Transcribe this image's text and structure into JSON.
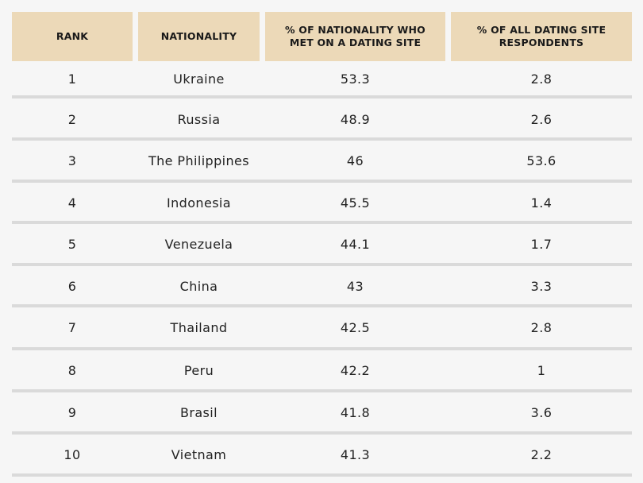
{
  "table": {
    "headers": [
      "RANK",
      "NATIONALITY",
      "% OF NATIONALITY WHO MET ON A DATING SITE",
      "% OF ALL DATING SITE RESPONDENTS"
    ],
    "rows": [
      {
        "rank": "1",
        "nationality": "Ukraine",
        "pct_met": "53.3",
        "pct_all": "2.8"
      },
      {
        "rank": "2",
        "nationality": "Russia",
        "pct_met": "48.9",
        "pct_all": "2.6"
      },
      {
        "rank": "3",
        "nationality": "The Philippines",
        "pct_met": "46",
        "pct_all": "53.6"
      },
      {
        "rank": "4",
        "nationality": "Indonesia",
        "pct_met": "45.5",
        "pct_all": "1.4"
      },
      {
        "rank": "5",
        "nationality": "Venezuela",
        "pct_met": "44.1",
        "pct_all": "1.7"
      },
      {
        "rank": "6",
        "nationality": "China",
        "pct_met": "43",
        "pct_all": "3.3"
      },
      {
        "rank": "7",
        "nationality": "Thailand",
        "pct_met": "42.5",
        "pct_all": "2.8"
      },
      {
        "rank": "8",
        "nationality": "Peru",
        "pct_met": "42.2",
        "pct_all": "1"
      },
      {
        "rank": "9",
        "nationality": "Brasil",
        "pct_met": "41.8",
        "pct_all": "3.6"
      },
      {
        "rank": "10",
        "nationality": "Vietnam",
        "pct_met": "41.3",
        "pct_all": "2.2"
      }
    ]
  }
}
